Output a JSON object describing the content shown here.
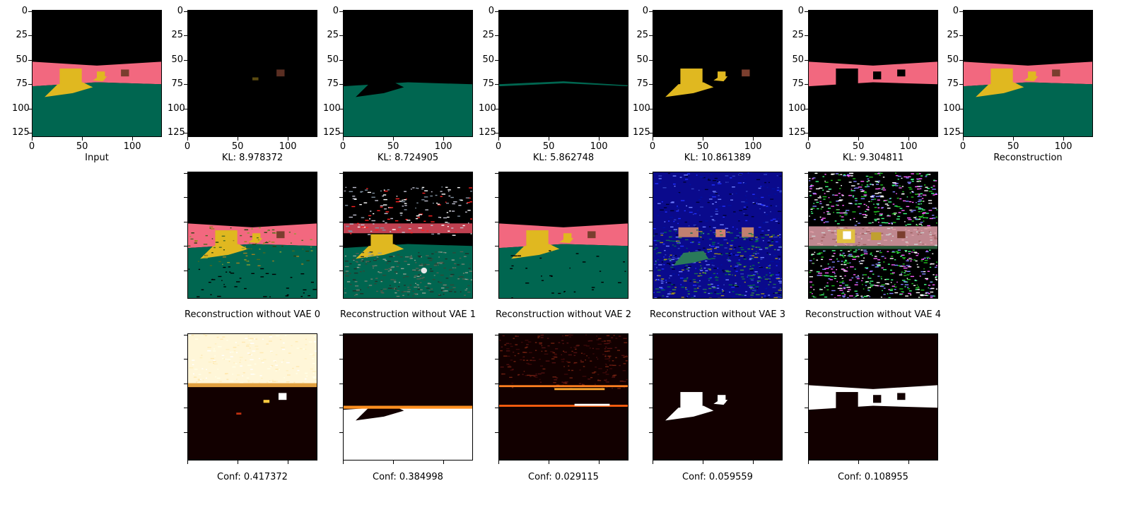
{
  "top_row": {
    "captions": [
      "Input",
      "KL: 8.978372",
      "KL: 8.724905",
      "KL: 5.862748",
      "KL: 10.861389",
      "KL: 9.304811",
      "Reconstruction"
    ],
    "y_ticks": [
      "0",
      "25",
      "50",
      "75",
      "100",
      "125"
    ],
    "x_ticks": [
      "0",
      "50",
      "100"
    ]
  },
  "middle_row": {
    "captions": [
      "Reconstruction without VAE 0",
      "Reconstruction without VAE 1",
      "Reconstruction without VAE 2",
      "Reconstruction without VAE 3",
      "Reconstruction without VAE 4"
    ]
  },
  "bottom_row": {
    "captions": [
      "Conf: 0.417372",
      "Conf: 0.384998",
      "Conf: 0.029115",
      "Conf: 0.059559",
      "Conf: 0.108955"
    ]
  },
  "colors": {
    "sky": "#000000",
    "wall": "#f2687f",
    "floor": "#006650",
    "object_yellow": "#e0b820",
    "object_brown": "#7a3e2e",
    "heat_dark": "#120000",
    "heat_bright": "#ffffff"
  }
}
